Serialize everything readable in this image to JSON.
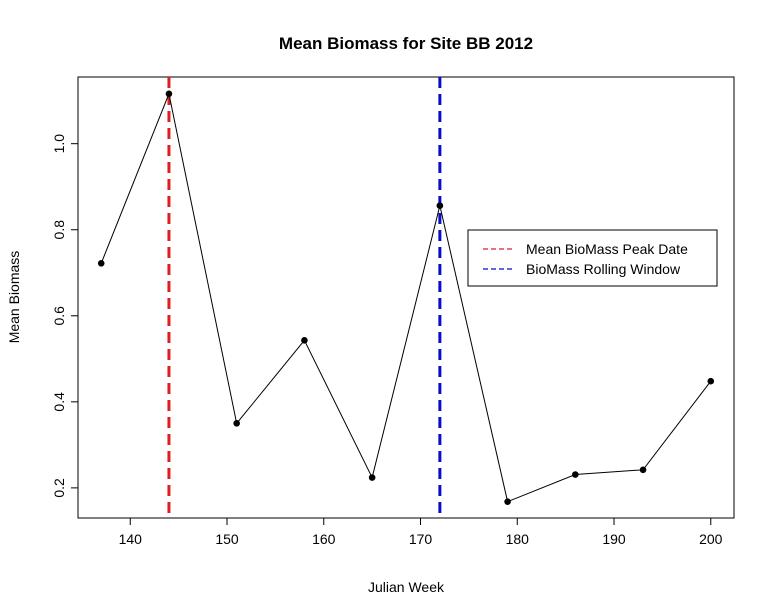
{
  "chart_data": {
    "type": "line",
    "title": "Mean Biomass for Site BB 2012",
    "xlabel": "Julian Week",
    "ylabel": "Mean Biomass",
    "xlim": [
      134.6,
      202.4
    ],
    "ylim": [
      0.13,
      1.155
    ],
    "x_ticks": [
      140,
      150,
      160,
      170,
      180,
      190,
      200
    ],
    "y_ticks": [
      0.2,
      0.4,
      0.6,
      0.8,
      1.0
    ],
    "y_tick_labels": [
      "0.2",
      "0.4",
      "0.6",
      "0.8",
      "1.0"
    ],
    "grid": false,
    "series": [
      {
        "x": [
          137,
          144,
          151,
          158,
          165,
          172,
          179,
          186,
          193,
          200
        ],
        "y": [
          0.722,
          1.116,
          0.35,
          0.543,
          0.224,
          0.856,
          0.168,
          0.231,
          0.242,
          0.448
        ],
        "color": "#000000",
        "marker": "filled-circle"
      }
    ],
    "vlines": [
      {
        "x": 144,
        "color": "#DF1F1F",
        "style": "dashed"
      },
      {
        "x": 172,
        "color": "#0B0BC8",
        "style": "dashed"
      }
    ],
    "legend": {
      "position": "right",
      "entries": [
        {
          "label": "Mean BioMass Peak Date",
          "color": "#DF1F1F",
          "style": "dashed"
        },
        {
          "label": "BioMass Rolling Window",
          "color": "#0B0BC8",
          "style": "dashed"
        }
      ]
    }
  }
}
